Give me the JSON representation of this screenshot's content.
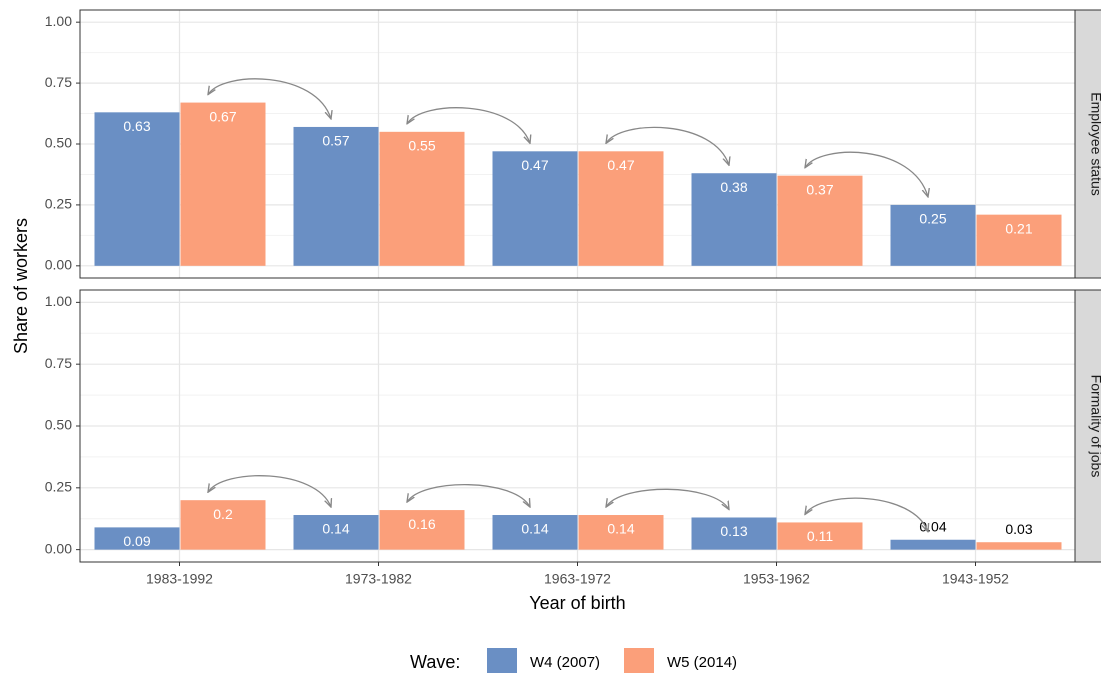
{
  "chart_data": [
    {
      "type": "bar",
      "strip_label": "Employee status",
      "y_label": "Share of workers",
      "legend_title": "Wave:",
      "categories": [
        "1983-1992",
        "1973-1982",
        "1963-1972",
        "1953-1962",
        "1943-1952"
      ],
      "series": [
        {
          "name": "W4 (2007)",
          "color": "#6a8fc4",
          "values": [
            0.63,
            0.57,
            0.47,
            0.38,
            0.25
          ]
        },
        {
          "name": "W5 (2014)",
          "color": "#fb9f7a",
          "values": [
            0.67,
            0.55,
            0.47,
            0.37,
            0.21
          ]
        }
      ],
      "ylim": [
        -0.05,
        1.05
      ],
      "yticks": [
        {
          "value": 0,
          "label": "0.00"
        },
        0.25,
        {
          "value": 0.5,
          "label": "0.50"
        },
        0.75,
        {
          "value": 1,
          "label": "1.00"
        }
      ],
      "grid": true
    },
    {
      "type": "bar",
      "strip_label": "Formality of jobs",
      "x_label": "Year of birth",
      "categories": [
        "1983-1992",
        "1973-1982",
        "1963-1972",
        "1953-1962",
        "1943-1952"
      ],
      "series": [
        {
          "name": "W4 (2007)",
          "color": "#6a8fc4",
          "values": [
            0.09,
            0.14,
            0.14,
            0.13,
            0.04
          ]
        },
        {
          "name": "W5 (2014)",
          "color": "#fb9f7a",
          "values": [
            0.2,
            0.16,
            0.14,
            0.11,
            0.03
          ]
        }
      ],
      "ylim": [
        -0.05,
        1.05
      ],
      "yticks": [
        {
          "value": 0,
          "label": "0.00"
        },
        0.25,
        {
          "value": 0.5,
          "label": "0.50"
        },
        0.75,
        {
          "value": 1,
          "label": "1.00"
        }
      ],
      "grid": true
    }
  ]
}
